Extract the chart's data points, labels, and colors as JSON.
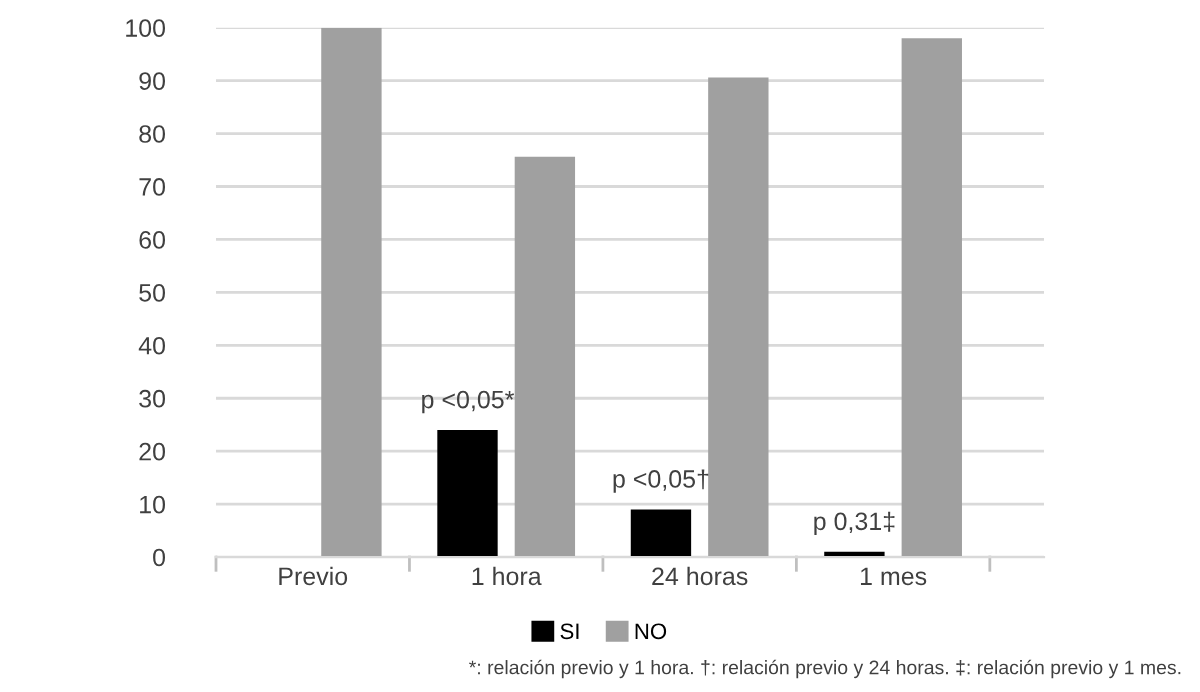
{
  "chart_data": {
    "type": "bar",
    "categories": [
      "Previo",
      "1 hora",
      "24 horas",
      "1 mes"
    ],
    "series": [
      {
        "name": "SI",
        "color": "#000000",
        "values": [
          0,
          24,
          9,
          1
        ]
      },
      {
        "name": "NO",
        "color": "#a0a0a0",
        "values": [
          100,
          75.6,
          90.6,
          98
        ]
      }
    ],
    "ylim": [
      0,
      100
    ],
    "yticks": [
      0,
      10,
      20,
      30,
      40,
      50,
      60,
      70,
      80,
      90,
      100
    ],
    "grid": "y",
    "legend": "bottom",
    "annotations": [
      {
        "text": "p <0,05*",
        "x": "1 hora",
        "y": 24
      },
      {
        "text": "p <0,05†",
        "x": "24 horas",
        "y": 9
      },
      {
        "text": "p 0,31‡",
        "x": "1 mes",
        "y": 1
      },
      "*: relación previo y 1 hora. †: relación previo y 24 horas. ‡: relación previo y 1 mes."
    ]
  }
}
